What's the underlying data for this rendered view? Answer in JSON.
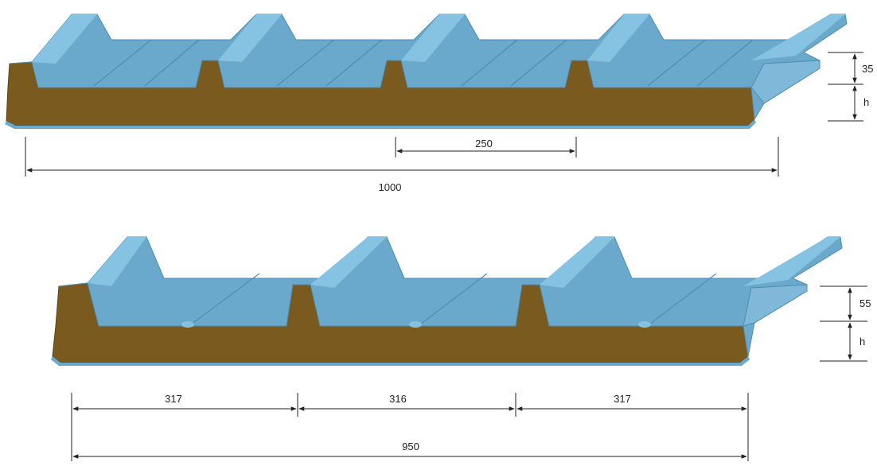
{
  "panel_top": {
    "rib_height_label": "35",
    "thickness_label": "h",
    "rib_spacing_label": "250",
    "overall_width_label": "1000"
  },
  "panel_bottom": {
    "rib_height_label": "55",
    "thickness_label": "h",
    "segment_labels": [
      "317",
      "316",
      "317"
    ],
    "overall_width_label": "950"
  },
  "colors": {
    "steel_face": "#6aa9cb",
    "steel_top": "#86c3e3",
    "steel_dark": "#4e8db0",
    "core": "#7a5a1f",
    "core_dark": "#5e4415",
    "dimension": "#222222"
  }
}
